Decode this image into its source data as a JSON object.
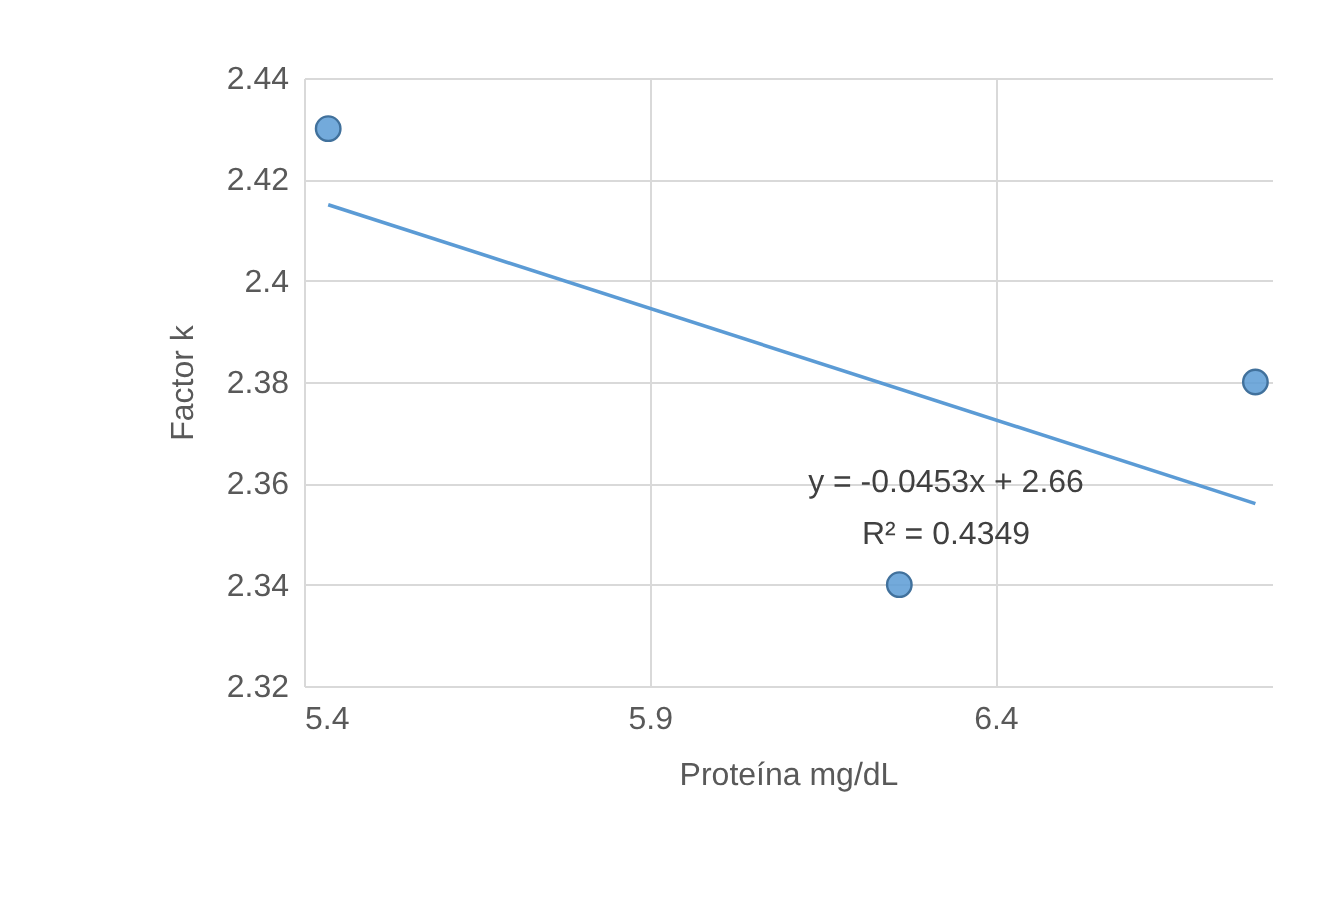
{
  "chart_data": {
    "type": "scatter",
    "xlabel": "Proteína mg/dL",
    "ylabel": "Factor k",
    "xlim": [
      5.4,
      6.8
    ],
    "xticks": [
      5.4,
      5.9,
      6.4
    ],
    "ylim": [
      2.32,
      2.44
    ],
    "yticks": [
      2.32,
      2.34,
      2.36,
      2.38,
      2.4,
      2.42,
      2.44
    ],
    "grid": true,
    "series": [
      {
        "color": "#5b9bd5",
        "marker": "circle",
        "x": [
          5.435,
          6.261,
          6.776
        ],
        "values": [
          2.43,
          2.34,
          2.38
        ]
      },
      {
        "type": "line",
        "color": "#5b9bd5",
        "x": [
          5.435,
          6.776
        ],
        "values": [
          2.415,
          2.356
        ]
      }
    ],
    "annotations": [
      "y = -0.0453x + 2.66",
      "R² = 0.4349"
    ]
  }
}
